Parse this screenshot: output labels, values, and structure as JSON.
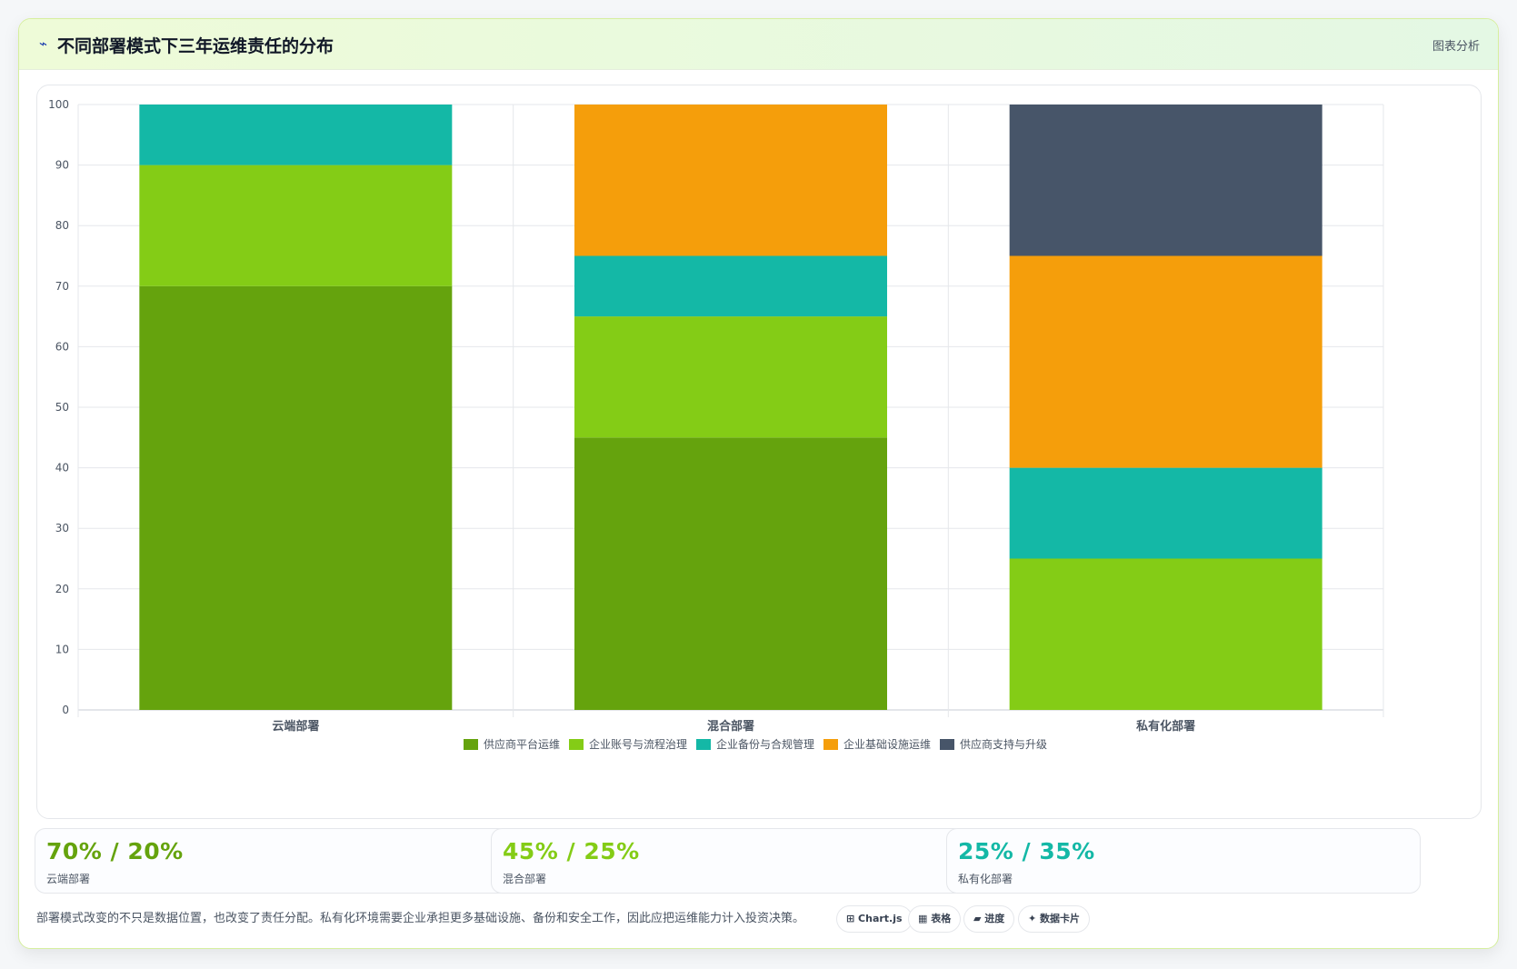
{
  "header": {
    "icon": "⌁",
    "title": "不同部署模式下三年运维责任的分布",
    "right_label": "图表分析"
  },
  "chart_data": {
    "type": "bar",
    "stacked": true,
    "categories": [
      "云端部署",
      "混合部署",
      "私有化部署"
    ],
    "series": [
      {
        "name": "供应商平台运维",
        "color": "#65a30d",
        "values": [
          70,
          45,
          0
        ]
      },
      {
        "name": "企业账号与流程治理",
        "color": "#84cc16",
        "values": [
          20,
          20,
          25
        ]
      },
      {
        "name": "企业备份与合规管理",
        "color": "#14b8a6",
        "values": [
          10,
          10,
          15
        ]
      },
      {
        "name": "企业基础设施运维",
        "color": "#f59e0b",
        "values": [
          0,
          25,
          35
        ]
      },
      {
        "name": "供应商支持与升级",
        "color": "#475569",
        "values": [
          0,
          0,
          25
        ]
      }
    ],
    "ylim": [
      0,
      100
    ],
    "yticks": [
      0,
      10,
      20,
      30,
      40,
      50,
      60,
      70,
      80,
      90,
      100
    ],
    "grid": true,
    "legend": "bottom"
  },
  "stats": [
    {
      "value": "70% / 20%",
      "label": "云端部署",
      "color": "#65a30d"
    },
    {
      "value": "45% / 25%",
      "label": "混合部署",
      "color": "#84cc16"
    },
    {
      "value": "25% / 35%",
      "label": "私有化部署",
      "color": "#14b8a6"
    }
  ],
  "footer": {
    "note": "部署模式改变的不只是数据位置，也改变了责任分配。私有化环境需要企业承担更多基础设施、备份和安全工作，因此应把运维能力计入投资决策。"
  },
  "pills": [
    {
      "label": "⊞ Chart.js"
    },
    {
      "label": "▦ 表格"
    },
    {
      "label": "▰ 进度"
    },
    {
      "label": "✦ 数据卡片"
    }
  ]
}
